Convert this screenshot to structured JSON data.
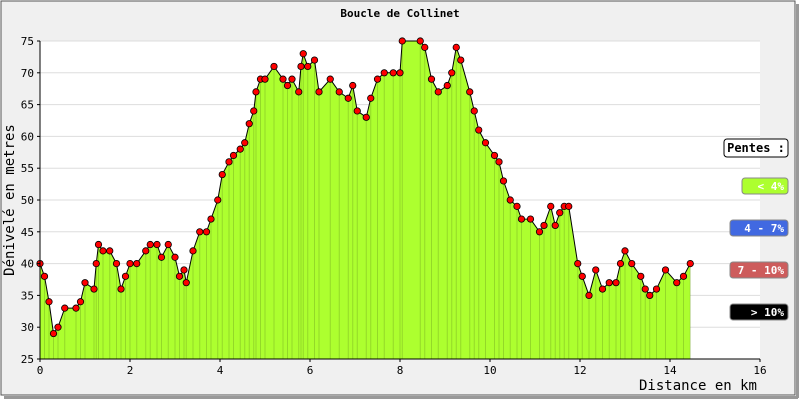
{
  "chart_data": {
    "type": "area",
    "title": "Boucle de Collinet",
    "x_label": "Distance en km",
    "y_label": "Dénivelé en metres",
    "xlim": [
      0,
      16
    ],
    "xticks": [
      0,
      2,
      4,
      6,
      8,
      10,
      12,
      14,
      16
    ],
    "ylim": [
      25,
      75
    ],
    "yticks": [
      25,
      30,
      35,
      40,
      45,
      50,
      55,
      60,
      65,
      70,
      75
    ],
    "grid": true,
    "fill_color": "#adff2f",
    "line_color": "#000000",
    "point_color": "#ff0000",
    "x": [
      0,
      0.1,
      0.2,
      0.3,
      0.4,
      0.55,
      0.8,
      0.9,
      1.0,
      1.2,
      1.25,
      1.3,
      1.4,
      1.55,
      1.7,
      1.8,
      1.9,
      2.0,
      2.15,
      2.35,
      2.45,
      2.6,
      2.7,
      2.85,
      3.0,
      3.1,
      3.2,
      3.25,
      3.4,
      3.55,
      3.7,
      3.8,
      3.95,
      4.05,
      4.2,
      4.3,
      4.45,
      4.55,
      4.65,
      4.75,
      4.8,
      4.9,
      5.0,
      5.2,
      5.4,
      5.5,
      5.6,
      5.75,
      5.8,
      5.85,
      5.95,
      6.1,
      6.2,
      6.45,
      6.65,
      6.85,
      6.95,
      7.05,
      7.25,
      7.35,
      7.5,
      7.65,
      7.85,
      8.0,
      8.05,
      8.45,
      8.55,
      8.7,
      8.85,
      9.05,
      9.15,
      9.25,
      9.35,
      9.55,
      9.65,
      9.75,
      9.9,
      10.1,
      10.2,
      10.3,
      10.45,
      10.6,
      10.7,
      10.9,
      11.1,
      11.2,
      11.35,
      11.45,
      11.55,
      11.65,
      11.75,
      11.95,
      12.05,
      12.2,
      12.35,
      12.5,
      12.65,
      12.8,
      12.9,
      13.0,
      13.15,
      13.35,
      13.45,
      13.55,
      13.7,
      13.9,
      14.15,
      14.3,
      14.45
    ],
    "values": [
      40,
      38,
      34,
      29,
      30,
      33,
      33,
      34,
      37,
      36,
      40,
      43,
      42,
      42,
      40,
      36,
      38,
      40,
      40,
      42,
      43,
      43,
      41,
      43,
      41,
      38,
      39,
      37,
      42,
      45,
      45,
      47,
      50,
      54,
      56,
      57,
      58,
      59,
      62,
      64,
      67,
      69,
      69,
      71,
      69,
      68,
      69,
      67,
      71,
      73,
      71,
      72,
      67,
      69,
      67,
      66,
      68,
      64,
      63,
      66,
      69,
      70,
      70,
      70,
      75,
      75,
      74,
      69,
      67,
      68,
      70,
      74,
      72,
      67,
      64,
      61,
      59,
      57,
      56,
      53,
      50,
      49,
      47,
      47,
      45,
      46,
      49,
      46,
      48,
      49,
      49,
      40,
      38,
      35,
      39,
      36,
      37,
      37,
      40,
      42,
      40,
      38,
      36,
      35,
      36,
      39,
      37,
      38,
      40
    ],
    "legend": {
      "title": "Pentes :",
      "items": [
        {
          "label": "< 4%",
          "color": "#adff2f"
        },
        {
          "label": "4 - 7%",
          "color": "#4169e1"
        },
        {
          "label": "7 - 10%",
          "color": "#cd5c5c"
        },
        {
          "label": "> 10%",
          "color": "#000000"
        }
      ]
    }
  }
}
